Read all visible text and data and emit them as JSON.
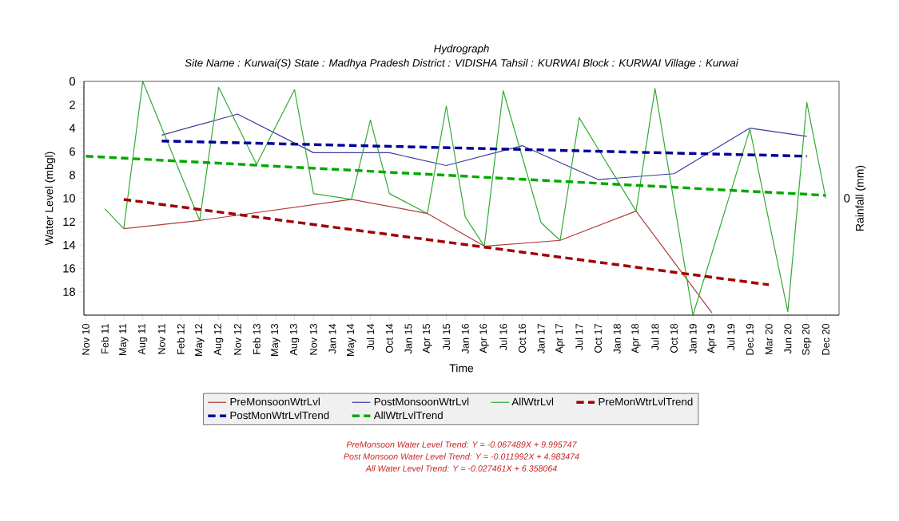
{
  "chart_data": {
    "type": "line",
    "title": "Hydrograph",
    "subtitle": "Site Name : Kurwai(S)  State : Madhya Pradesh District : VIDISHA  Tahsil : KURWAI  Block : KURWAI Village : Kurwai",
    "xlabel": "Time",
    "ylabel": "Water Level (mbgl)",
    "y2label": "Rainfall (mm)",
    "categories": [
      "Nov 10",
      "Feb 11",
      "May 11",
      "Aug 11",
      "Nov 11",
      "Feb 12",
      "May 12",
      "Aug 12",
      "Nov 12",
      "Feb 13",
      "May 13",
      "Aug 13",
      "Nov 13",
      "Jan 14",
      "May 14",
      "Jul 14",
      "Oct 14",
      "Jan 15",
      "Apr 15",
      "Jul 15",
      "Jan 16",
      "Apr 16",
      "Jul 16",
      "Oct 16",
      "Jan 17",
      "Apr 17",
      "Jul 17",
      "Oct 17",
      "Jan 18",
      "Apr 18",
      "Jul 18",
      "Oct 18",
      "Jan 19",
      "Apr 19",
      "Jul 19",
      "Dec 19",
      "Mar 20",
      "Jun 20",
      "Sep 20",
      "Dec 20"
    ],
    "ylim": [
      20,
      0
    ],
    "yticks": [
      0,
      2,
      4,
      6,
      8,
      10,
      12,
      14,
      16,
      18
    ],
    "legend": "bottom",
    "series": [
      {
        "name": "PreMonsoonWtrLvl",
        "color": "#b03a3a",
        "line_style": "solid",
        "values": [
          null,
          null,
          12.6,
          null,
          null,
          null,
          11.9,
          null,
          null,
          null,
          null,
          null,
          null,
          null,
          10.1,
          null,
          null,
          null,
          11.3,
          null,
          null,
          14.1,
          null,
          null,
          null,
          13.6,
          null,
          null,
          null,
          11.1,
          null,
          null,
          null,
          19.8,
          null,
          null,
          null,
          null,
          null,
          null
        ]
      },
      {
        "name": "PostMonsoonWtrLvl",
        "color": "#3a3aa0",
        "line_style": "solid",
        "values": [
          null,
          null,
          null,
          null,
          4.6,
          null,
          null,
          null,
          2.8,
          null,
          null,
          null,
          6.1,
          null,
          null,
          null,
          6.1,
          null,
          null,
          7.2,
          null,
          null,
          null,
          5.5,
          null,
          null,
          null,
          8.4,
          null,
          null,
          null,
          7.9,
          null,
          null,
          null,
          4.0,
          null,
          null,
          4.7,
          null
        ]
      },
      {
        "name": "AllWtrLvl",
        "color": "#33aa33",
        "line_style": "solid",
        "values": [
          null,
          10.9,
          12.6,
          0,
          null,
          null,
          11.9,
          0.5,
          null,
          7.1,
          null,
          0.7,
          9.6,
          null,
          10.1,
          3.3,
          9.6,
          null,
          11.3,
          2.1,
          11.6,
          14.1,
          0.8,
          null,
          12.1,
          13.6,
          3.1,
          null,
          null,
          11.1,
          0.6,
          null,
          20,
          null,
          null,
          4.1,
          null,
          19.7,
          1.8,
          10.0
        ]
      },
      {
        "name": "PreMonWtrLvlTrend",
        "color": "#a00000",
        "line_style": "dashed",
        "values": [
          null,
          null,
          10.1,
          null,
          null,
          null,
          null,
          null,
          null,
          null,
          null,
          null,
          null,
          null,
          null,
          null,
          null,
          null,
          null,
          null,
          null,
          null,
          null,
          null,
          null,
          null,
          null,
          null,
          null,
          null,
          null,
          null,
          null,
          null,
          null,
          null,
          17.4,
          null,
          null,
          null
        ]
      },
      {
        "name": "PostMonWtrLvlTrend",
        "color": "#000099",
        "line_style": "dashed",
        "values": [
          null,
          null,
          null,
          null,
          5.1,
          null,
          null,
          null,
          null,
          null,
          null,
          null,
          null,
          null,
          null,
          null,
          null,
          null,
          null,
          null,
          null,
          null,
          null,
          null,
          null,
          null,
          null,
          null,
          null,
          null,
          null,
          null,
          null,
          null,
          null,
          null,
          null,
          null,
          6.4,
          null
        ]
      },
      {
        "name": "AllWtrLvlTrend",
        "color": "#00aa00",
        "line_style": "dashed",
        "values": [
          6.4,
          null,
          null,
          null,
          null,
          null,
          null,
          null,
          null,
          null,
          null,
          null,
          null,
          null,
          null,
          null,
          null,
          null,
          null,
          null,
          null,
          null,
          null,
          null,
          null,
          null,
          null,
          null,
          null,
          null,
          null,
          null,
          null,
          null,
          null,
          null,
          null,
          null,
          null,
          9.75
        ]
      }
    ],
    "annotations": [
      "0",
      "PreMonsoon Water Level Trend: Y = -0.067489X + 9.995747",
      "Post Monsoon Water Level Trend: Y = -0.011992X + 4.983474",
      "All Water Level Trend: Y = -0.027461X + 6.358064"
    ]
  }
}
